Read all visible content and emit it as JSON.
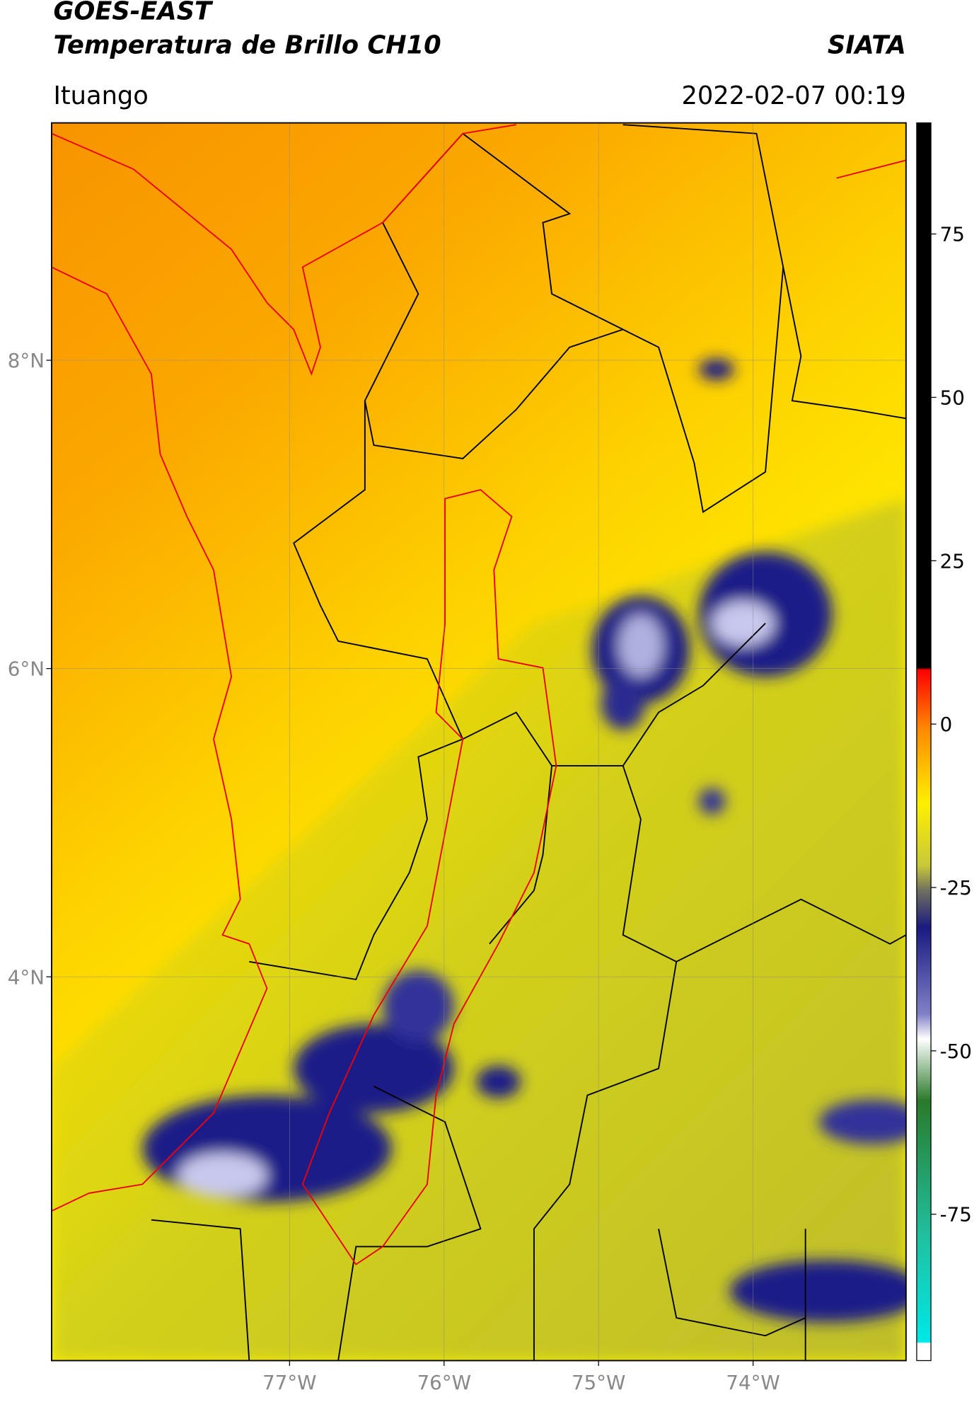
{
  "header": {
    "title": "GOES-EAST",
    "subtitle": "Temperatura de Brillo CH10",
    "brand": "SIATA",
    "location": "Ituango",
    "datetime": "2022-02-07 00:19"
  },
  "map": {
    "lonlim": [
      -78.54,
      -73.01
    ],
    "latlim": [
      1.51,
      9.54
    ],
    "lonticks": [
      {
        "value": -77,
        "label": "77°W"
      },
      {
        "value": -76,
        "label": "76°W"
      },
      {
        "value": -75,
        "label": "75°W"
      },
      {
        "value": -74,
        "label": "74°W"
      }
    ],
    "latticks": [
      {
        "value": 8,
        "label": "8°N"
      },
      {
        "value": 6,
        "label": "6°N"
      },
      {
        "value": 4,
        "label": "4°N"
      }
    ],
    "grid": true
  },
  "colorbar": {
    "lim": [
      -97.4,
      92
    ],
    "ticks": [
      75,
      50,
      25,
      0,
      -25,
      -50,
      -75
    ]
  }
}
